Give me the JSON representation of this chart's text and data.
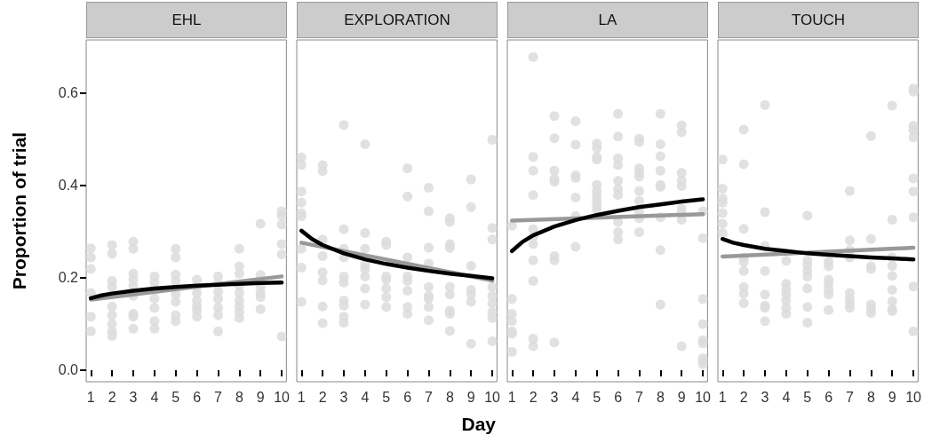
{
  "chart_data": [
    {
      "type": "scatter",
      "title": "EHL",
      "ylabel": "Proportion of trial",
      "xlim": [
        0.78,
        10.22
      ],
      "xticks": [
        1,
        2,
        3,
        4,
        5,
        6,
        7,
        8,
        9,
        10
      ],
      "ylim": [
        -0.025,
        0.715
      ],
      "yticks": [
        {
          "value": 0,
          "label": "0.0"
        },
        {
          "value": 0.2,
          "label": "0.2"
        },
        {
          "value": 0.4,
          "label": "0.4"
        },
        {
          "value": 0.6,
          "label": "0.6"
        }
      ],
      "grid": false,
      "series": [
        {
          "type": "scatter",
          "marker": "circle",
          "color": "#dcdcdc",
          "x": [
            1,
            1,
            1,
            1,
            1,
            1,
            2,
            2,
            2,
            2,
            2,
            2,
            2,
            2,
            2,
            3,
            3,
            3,
            3,
            3,
            3,
            3,
            3,
            3,
            4,
            4,
            4,
            4,
            4,
            4,
            5,
            5,
            5,
            5,
            5,
            5,
            5,
            5,
            6,
            6,
            6,
            6,
            6,
            6,
            6,
            7,
            7,
            7,
            7,
            7,
            7,
            7,
            8,
            8,
            8,
            8,
            8,
            8,
            8,
            8,
            8,
            9,
            9,
            9,
            9,
            9,
            9,
            10,
            10,
            10,
            10,
            10,
            10
          ],
          "values": [
            0.264,
            0.244,
            0.219,
            0.167,
            0.116,
            0.084,
            0.271,
            0.252,
            0.193,
            0.18,
            0.138,
            0.119,
            0.1,
            0.084,
            0.074,
            0.278,
            0.263,
            0.209,
            0.196,
            0.183,
            0.161,
            0.122,
            0.116,
            0.09,
            0.203,
            0.19,
            0.155,
            0.135,
            0.106,
            0.09,
            0.263,
            0.244,
            0.207,
            0.193,
            0.164,
            0.148,
            0.119,
            0.106,
            0.196,
            0.183,
            0.167,
            0.151,
            0.138,
            0.129,
            0.116,
            0.203,
            0.187,
            0.17,
            0.154,
            0.135,
            0.119,
            0.084,
            0.263,
            0.225,
            0.209,
            0.183,
            0.167,
            0.151,
            0.138,
            0.126,
            0.113,
            0.317,
            0.206,
            0.18,
            0.167,
            0.158,
            0.132,
            0.344,
            0.334,
            0.315,
            0.273,
            0.251,
            0.073
          ]
        },
        {
          "type": "line",
          "marker": "none",
          "color": "#999999",
          "x": [
            1,
            10
          ],
          "values": [
            0.153,
            0.203
          ]
        },
        {
          "type": "line",
          "marker": "none",
          "color": "#000000",
          "x": [
            1,
            1.5,
            2,
            3,
            4,
            5,
            6,
            7,
            8,
            9,
            10
          ],
          "values": [
            0.156,
            0.162,
            0.166,
            0.172,
            0.177,
            0.18,
            0.183,
            0.185,
            0.187,
            0.189,
            0.19
          ]
        }
      ]
    },
    {
      "type": "scatter",
      "title": "EXPLORATION",
      "xlabel": "Day",
      "xlim": [
        0.78,
        10.22
      ],
      "xticks": [
        1,
        2,
        3,
        4,
        5,
        6,
        7,
        8,
        9,
        10
      ],
      "ylim": [
        -0.025,
        0.715
      ],
      "grid": false,
      "tick_labels": "x",
      "series": [
        {
          "type": "scatter",
          "marker": "circle",
          "color": "#dcdcdc",
          "x": [
            1,
            1,
            1,
            1,
            1,
            1,
            1,
            1,
            1,
            2,
            2,
            2,
            2,
            2,
            2,
            2,
            2,
            3,
            3,
            3,
            3,
            3,
            3,
            3,
            3,
            3,
            3,
            4,
            4,
            4,
            4,
            4,
            4,
            4,
            4,
            5,
            5,
            5,
            5,
            5,
            5,
            5,
            6,
            6,
            6,
            6,
            6,
            6,
            6,
            6,
            7,
            7,
            7,
            7,
            7,
            7,
            7,
            7,
            7,
            8,
            8,
            8,
            8,
            8,
            8,
            8,
            8,
            8,
            9,
            9,
            9,
            9,
            9,
            9,
            9,
            10,
            10,
            10,
            10,
            10,
            10,
            10,
            10,
            10
          ],
          "values": [
            0.461,
            0.444,
            0.387,
            0.363,
            0.34,
            0.333,
            0.263,
            0.222,
            0.148,
            0.444,
            0.431,
            0.283,
            0.247,
            0.212,
            0.194,
            0.138,
            0.102,
            0.531,
            0.305,
            0.263,
            0.244,
            0.203,
            0.19,
            0.151,
            0.14,
            0.116,
            0.103,
            0.489,
            0.297,
            0.263,
            0.228,
            0.219,
            0.203,
            0.177,
            0.142,
            0.278,
            0.271,
            0.203,
            0.196,
            0.177,
            0.158,
            0.137,
            0.437,
            0.376,
            0.244,
            0.203,
            0.193,
            0.172,
            0.137,
            0.122,
            0.395,
            0.344,
            0.265,
            0.231,
            0.18,
            0.161,
            0.155,
            0.137,
            0.108,
            0.329,
            0.321,
            0.273,
            0.265,
            0.18,
            0.164,
            0.129,
            0.122,
            0.085,
            0.413,
            0.353,
            0.226,
            0.174,
            0.164,
            0.148,
            0.057,
            0.499,
            0.308,
            0.283,
            0.18,
            0.161,
            0.145,
            0.126,
            0.113,
            0.063
          ]
        },
        {
          "type": "line",
          "marker": "none",
          "color": "#999999",
          "x": [
            1,
            10
          ],
          "values": [
            0.276,
            0.194
          ]
        },
        {
          "type": "line",
          "marker": "none",
          "color": "#000000",
          "x": [
            1,
            1.5,
            2,
            3,
            4,
            5,
            6,
            7,
            8,
            9,
            10
          ],
          "values": [
            0.302,
            0.284,
            0.271,
            0.253,
            0.24,
            0.23,
            0.222,
            0.215,
            0.209,
            0.204,
            0.199
          ]
        }
      ]
    },
    {
      "type": "scatter",
      "title": "LA",
      "xlim": [
        0.78,
        10.22
      ],
      "xticks": [
        1,
        2,
        3,
        4,
        5,
        6,
        7,
        8,
        9,
        10
      ],
      "ylim": [
        -0.025,
        0.715
      ],
      "grid": false,
      "tick_labels": "x",
      "series": [
        {
          "type": "scatter",
          "marker": "circle",
          "color": "#dcdcdc",
          "x": [
            1,
            1,
            1,
            1,
            1,
            1,
            1,
            2,
            2,
            2,
            2,
            2,
            2,
            2,
            2,
            2,
            2,
            2,
            3,
            3,
            3,
            3,
            3,
            3,
            3,
            3,
            4,
            4,
            4,
            4,
            4,
            4,
            4,
            5,
            5,
            5,
            5,
            5,
            5,
            5,
            5,
            5,
            5,
            6,
            6,
            6,
            6,
            6,
            6,
            6,
            6,
            6,
            6,
            7,
            7,
            7,
            7,
            7,
            7,
            7,
            7,
            7,
            7,
            8,
            8,
            8,
            8,
            8,
            8,
            8,
            8,
            8,
            9,
            9,
            9,
            9,
            9,
            9,
            9,
            9,
            9,
            10,
            10,
            10,
            10,
            10,
            10,
            10,
            10,
            10
          ],
          "values": [
            0.313,
            0.154,
            0.122,
            0.106,
            0.084,
            0.079,
            0.04,
            0.678,
            0.462,
            0.432,
            0.379,
            0.305,
            0.289,
            0.273,
            0.238,
            0.193,
            0.068,
            0.052,
            0.55,
            0.502,
            0.432,
            0.414,
            0.408,
            0.247,
            0.238,
            0.06,
            0.539,
            0.488,
            0.422,
            0.416,
            0.374,
            0.334,
            0.267,
            0.491,
            0.481,
            0.462,
            0.456,
            0.401,
            0.388,
            0.376,
            0.366,
            0.356,
            0.347,
            0.555,
            0.506,
            0.459,
            0.444,
            0.41,
            0.392,
            0.379,
            0.321,
            0.299,
            0.283,
            0.501,
            0.494,
            0.437,
            0.427,
            0.419,
            0.388,
            0.366,
            0.344,
            0.329,
            0.299,
            0.555,
            0.489,
            0.463,
            0.432,
            0.401,
            0.397,
            0.331,
            0.26,
            0.142,
            0.53,
            0.515,
            0.427,
            0.411,
            0.399,
            0.35,
            0.34,
            0.326,
            0.052,
            0.344,
            0.286,
            0.154,
            0.1,
            0.065,
            0.058,
            0.026,
            0.02,
            0.013
          ]
        },
        {
          "type": "line",
          "marker": "none",
          "color": "#999999",
          "x": [
            1,
            10
          ],
          "values": [
            0.324,
            0.338
          ]
        },
        {
          "type": "line",
          "marker": "none",
          "color": "#000000",
          "x": [
            1,
            1.5,
            2,
            3,
            4,
            5,
            6,
            7,
            8,
            9,
            10
          ],
          "values": [
            0.258,
            0.278,
            0.292,
            0.311,
            0.325,
            0.336,
            0.345,
            0.353,
            0.359,
            0.365,
            0.37
          ]
        }
      ]
    },
    {
      "type": "scatter",
      "title": "TOUCH",
      "xlim": [
        0.78,
        10.22
      ],
      "xticks": [
        1,
        2,
        3,
        4,
        5,
        6,
        7,
        8,
        9,
        10
      ],
      "ylim": [
        -0.025,
        0.715
      ],
      "grid": false,
      "tick_labels": "x",
      "series": [
        {
          "type": "scatter",
          "marker": "circle",
          "color": "#dcdcdc",
          "x": [
            1,
            1,
            1,
            1,
            1,
            1,
            1,
            2,
            2,
            2,
            2,
            2,
            2,
            2,
            2,
            2,
            3,
            3,
            3,
            3,
            3,
            3,
            3,
            3,
            4,
            4,
            4,
            4,
            4,
            4,
            4,
            5,
            5,
            5,
            5,
            5,
            5,
            5,
            5,
            6,
            6,
            6,
            6,
            6,
            6,
            6,
            7,
            7,
            7,
            7,
            7,
            7,
            7,
            7,
            8,
            8,
            8,
            8,
            8,
            8,
            8,
            9,
            9,
            9,
            9,
            9,
            9,
            9,
            9,
            9,
            10,
            10,
            10,
            10,
            10,
            10,
            10,
            10,
            10,
            10
          ],
          "values": [
            0.456,
            0.393,
            0.372,
            0.363,
            0.34,
            0.317,
            0.297,
            0.521,
            0.446,
            0.306,
            0.244,
            0.235,
            0.215,
            0.18,
            0.166,
            0.145,
            0.574,
            0.342,
            0.269,
            0.215,
            0.164,
            0.14,
            0.135,
            0.106,
            0.237,
            0.187,
            0.175,
            0.164,
            0.151,
            0.135,
            0.122,
            0.335,
            0.238,
            0.228,
            0.215,
            0.203,
            0.177,
            0.137,
            0.103,
            0.235,
            0.225,
            0.196,
            0.187,
            0.175,
            0.164,
            0.13,
            0.388,
            0.281,
            0.26,
            0.244,
            0.167,
            0.155,
            0.145,
            0.135,
            0.507,
            0.284,
            0.225,
            0.219,
            0.142,
            0.132,
            0.124,
            0.573,
            0.326,
            0.244,
            0.226,
            0.204,
            0.174,
            0.149,
            0.132,
            0.128,
            0.61,
            0.603,
            0.529,
            0.52,
            0.504,
            0.415,
            0.387,
            0.331,
            0.181,
            0.084
          ]
        },
        {
          "type": "line",
          "marker": "none",
          "color": "#999999",
          "x": [
            1,
            10
          ],
          "values": [
            0.246,
            0.265
          ]
        },
        {
          "type": "line",
          "marker": "none",
          "color": "#000000",
          "x": [
            1,
            1.5,
            2,
            3,
            4,
            5,
            6,
            7,
            8,
            9,
            10
          ],
          "values": [
            0.284,
            0.276,
            0.271,
            0.263,
            0.258,
            0.253,
            0.25,
            0.247,
            0.244,
            0.242,
            0.24
          ]
        }
      ]
    }
  ]
}
